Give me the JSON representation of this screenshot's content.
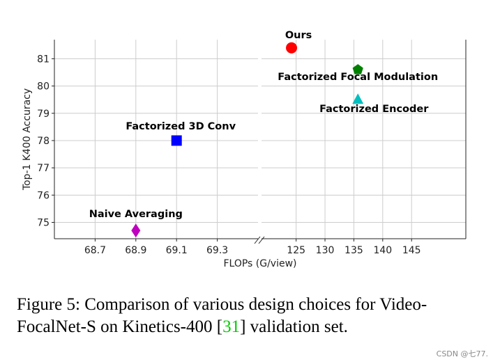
{
  "chart_data": [
    {
      "type": "scatter",
      "ylabel": "Top-1 K400 Accuracy",
      "xlim": [
        68.5,
        69.5
      ],
      "xticks": [
        68.7,
        68.9,
        69.1,
        69.3
      ],
      "ylim": [
        74.4,
        81.7
      ],
      "yticks": [
        75,
        76,
        77,
        78,
        79,
        80,
        81
      ],
      "grid": true,
      "series": [
        {
          "name": "Naive Averaging",
          "color": "#bf00bf",
          "marker": "diamond",
          "x": [
            68.9
          ],
          "values": [
            74.7
          ]
        },
        {
          "name": "Factorized 3D Conv",
          "color": "#0000ff",
          "marker": "square",
          "x": [
            69.1
          ],
          "values": [
            78.0
          ]
        }
      ]
    },
    {
      "type": "scatter",
      "xlabel": "FLOPs (G/view)",
      "xlim": [
        119,
        154.4
      ],
      "xticks": [
        125,
        130,
        135,
        140,
        145
      ],
      "grid": true,
      "series": [
        {
          "name": "Ours",
          "color": "#ff0000",
          "marker": "circle",
          "x": [
            124.2
          ],
          "values": [
            81.4
          ]
        },
        {
          "name": "Factorized Focal Modulation",
          "color": "#008000",
          "marker": "pentagon",
          "x": [
            135.7
          ],
          "values": [
            80.6
          ]
        },
        {
          "name": "Factorized Encoder",
          "color": "#00bfbf",
          "marker": "triangle",
          "x": [
            135.7
          ],
          "values": [
            79.5
          ]
        }
      ]
    }
  ],
  "caption": {
    "before": "Figure 5: Comparison of various design choices for Video-",
    "line2": "FocalNet-S on Kinetics-400 [",
    "ref": "31",
    "after": "] validation set."
  },
  "watermark": "CSDN @七77."
}
